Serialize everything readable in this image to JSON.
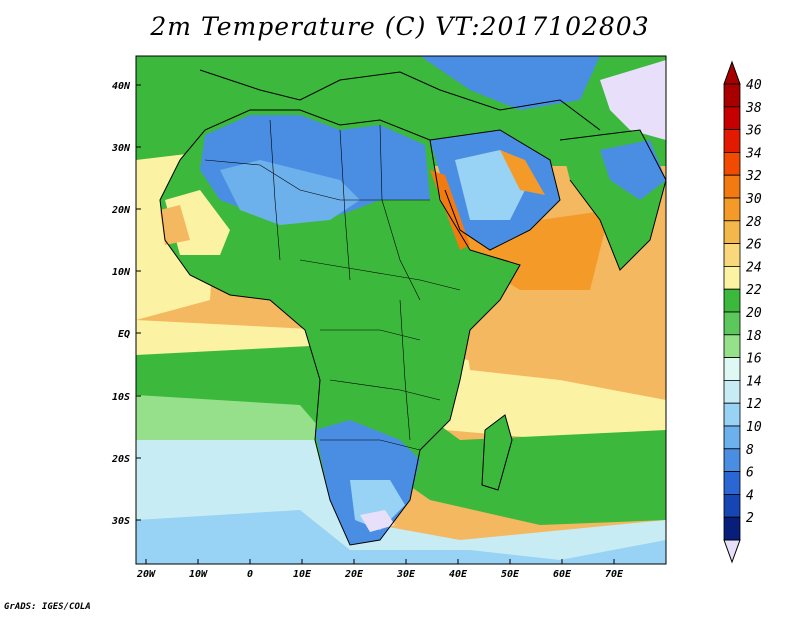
{
  "title": "2m Temperature (C) VT:2017102803",
  "credit": "GrADS: IGES/COLA",
  "lat_labels": [
    "40N",
    "30N",
    "20N",
    "10N",
    "EQ",
    "10S",
    "20S",
    "30S"
  ],
  "lon_labels": [
    "20W",
    "10W",
    "0",
    "10E",
    "20E",
    "30E",
    "40E",
    "50E",
    "60E",
    "70E"
  ],
  "colorbar": {
    "labels": [
      "40",
      "38",
      "36",
      "34",
      "32",
      "30",
      "28",
      "26",
      "24",
      "22",
      "20",
      "18",
      "16",
      "14",
      "12",
      "10",
      "8",
      "6",
      "4",
      "2"
    ],
    "colors": [
      "#a80000",
      "#c60000",
      "#e21a00",
      "#f04b00",
      "#f27a10",
      "#f49a28",
      "#f4b84a",
      "#f8d87a",
      "#fbf2a4",
      "#3cb83c",
      "#5cc85c",
      "#96e08c",
      "#e0f8f4",
      "#c8ecf4",
      "#98d2f4",
      "#6cb0ec",
      "#4a8ee4",
      "#2a66d4",
      "#1646b4",
      "#081e7a"
    ],
    "low_arrow_color": "#e8e0fa",
    "high_arrow_color": "#a80000"
  },
  "map_colors": {
    "ocean_warm": "#f4b860",
    "ocean_mid": "#fbf2a4",
    "ocean_green": "#3cb83c",
    "ocean_cool": "#c8ecf4",
    "land_green": "#3cb83c",
    "land_blue": "#4a8ee4",
    "land_light": "#96e08c",
    "hot_orange": "#f27a10",
    "snow": "#e8e0fa"
  }
}
